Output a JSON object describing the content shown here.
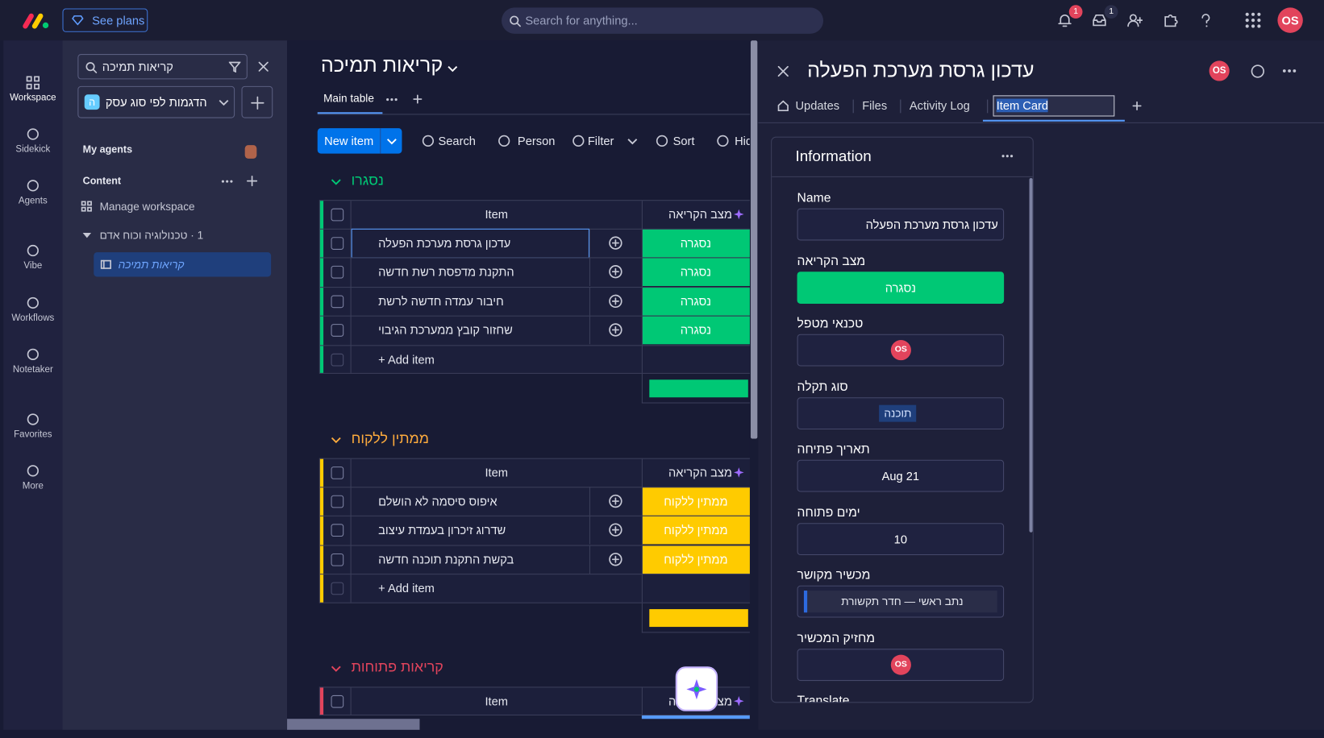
{
  "topbar": {
    "see_plans": "See plans",
    "search_placeholder": "Search for anything...",
    "notifications_badge": "1",
    "inbox_badge": "1",
    "avatar": "OS"
  },
  "left_nav": [
    "Workspace",
    "Sidekick",
    "Agents",
    "Vibe",
    "Workflows",
    "Notetaker",
    "Favorites",
    "More"
  ],
  "sidebar": {
    "search": "קריאות תמיכה",
    "workspace": "הדגמות לפי סוג עסק",
    "workspace_icon": "ה",
    "my_agents": "My agents",
    "content": "Content",
    "manage": "Manage workspace",
    "folder": "1 · טכנולוגיה וכוח אדם",
    "board": "קריאות תמיכה"
  },
  "board": {
    "title": "קריאות תמיכה",
    "tab": "Main table",
    "toolbar": {
      "new_item": "New item",
      "search": "Search",
      "person": "Person",
      "filter": "Filter",
      "sort": "Sort",
      "hide": "Hid"
    },
    "groups": [
      {
        "title": "נסגרו",
        "color": "#00c875",
        "item_header": "Item",
        "status_header": "מצב הקריאה",
        "items": [
          {
            "name": "עדכון גרסת מערכת הפעלה",
            "status": "נסגרה"
          },
          {
            "name": "התקנת מדפסת רשת חדשה",
            "status": "נסגרה"
          },
          {
            "name": "חיבור עמדה חדשה לרשת",
            "status": "נסגרה"
          },
          {
            "name": "שחזור קובץ ממערכת הגיבוי",
            "status": "נסגרה"
          }
        ],
        "add_item": "+ Add item"
      },
      {
        "title": "ממתין ללקוח",
        "color": "#ffcb00",
        "title_color": "#fdab3d",
        "item_header": "Item",
        "status_header": "מצב הקריאה",
        "items": [
          {
            "name": "איפוס סיסמה לא הושלם",
            "status": "ממתין ללקוח"
          },
          {
            "name": "שדרוג זיכרון בעמדת עיצוב",
            "status": "ממתין ללקוח"
          },
          {
            "name": "בקשת התקנת תוכנה חדשה",
            "status": "ממתין ללקוח"
          }
        ],
        "add_item": "+ Add item"
      },
      {
        "title": "קריאות פתוחות",
        "color": "#e2445c",
        "item_header": "Item",
        "status_header": "מצב הקריאה",
        "items": []
      }
    ]
  },
  "panel": {
    "title": "עדכון גרסת מערכת הפעלה",
    "avatar": "OS",
    "tabs": [
      "Updates",
      "Files",
      "Activity Log",
      "Item Card"
    ],
    "card_title": "Information",
    "fields": [
      {
        "label": "Name",
        "value": "עדכון גרסת מערכת הפעלה",
        "align": "right"
      },
      {
        "label": "מצב הקריאה",
        "status": "נסגרה",
        "color": "#00c875"
      },
      {
        "label": "טכנאי מטפל",
        "person": "OS"
      },
      {
        "label": "סוג תקלה",
        "tag": "תוכנה"
      },
      {
        "label": "תאריך פתיחה",
        "value": "21 Aug"
      },
      {
        "label": "ימים פתוחה",
        "value": "10"
      },
      {
        "label": "מכשיר מקושר",
        "link": "נתב ראשי — חדר תקשורת"
      },
      {
        "label": "מחזיק המכשיר",
        "person": "OS"
      },
      {
        "label": "Translate"
      }
    ]
  }
}
